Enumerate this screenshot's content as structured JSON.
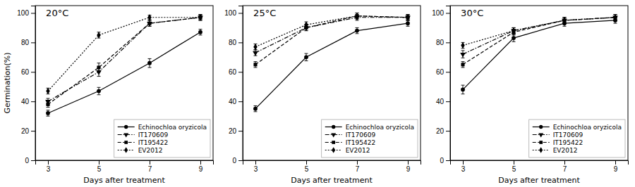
{
  "chart_data": [
    {
      "type": "line",
      "title": "20°C",
      "xlabel": "Days after treatment",
      "ylabel": "Germination(%)",
      "x": [
        3,
        5,
        7,
        9
      ],
      "xlim": [
        2.5,
        9.5
      ],
      "xticks": [
        3,
        5,
        7,
        9
      ],
      "ylim": [
        0,
        105
      ],
      "yticks": [
        0,
        20,
        40,
        60,
        80,
        100
      ],
      "legend": "lower-right",
      "series": [
        {
          "name": "Echinochloa oryzicola",
          "color": "#000000",
          "marker": "circle",
          "line_style": "solid",
          "values": [
            32,
            47,
            66,
            87
          ],
          "errors": [
            2,
            2.5,
            3,
            2
          ]
        },
        {
          "name": "IT170609",
          "color": "#000000",
          "marker": "triangle-down",
          "line_style": "dashdot",
          "values": [
            40,
            60,
            93,
            97
          ],
          "errors": [
            2,
            3,
            2,
            2
          ]
        },
        {
          "name": "IT195422",
          "color": "#000000",
          "marker": "square",
          "line_style": "dashed",
          "values": [
            38,
            63,
            93,
            97
          ],
          "errors": [
            2,
            3,
            2,
            2
          ]
        },
        {
          "name": "EV2012",
          "color": "#000000",
          "marker": "diamond",
          "line_style": "dotted",
          "values": [
            47,
            85,
            97,
            97
          ],
          "errors": [
            2,
            2,
            1.5,
            1.5
          ]
        }
      ]
    },
    {
      "type": "line",
      "title": "25°C",
      "xlabel": "Days after treatment",
      "x": [
        3,
        5,
        7,
        9
      ],
      "xlim": [
        2.5,
        9.5
      ],
      "xticks": [
        3,
        5,
        7,
        9
      ],
      "ylim": [
        0,
        105
      ],
      "yticks": [
        0,
        20,
        40,
        60,
        80,
        100
      ],
      "legend": "lower-right",
      "series": [
        {
          "name": "Echinochloa oryzicola",
          "color": "#000000",
          "marker": "circle",
          "line_style": "solid",
          "values": [
            35,
            70,
            88,
            93
          ],
          "errors": [
            2,
            2.5,
            2,
            2
          ]
        },
        {
          "name": "IT170609",
          "color": "#000000",
          "marker": "triangle-down",
          "line_style": "dashdot",
          "values": [
            73,
            90,
            97,
            97
          ],
          "errors": [
            2,
            2,
            2,
            2
          ]
        },
        {
          "name": "IT195422",
          "color": "#000000",
          "marker": "square",
          "line_style": "dashed",
          "values": [
            65,
            90,
            98,
            97
          ],
          "errors": [
            2,
            2,
            2,
            2
          ]
        },
        {
          "name": "EV2012",
          "color": "#000000",
          "marker": "diamond",
          "line_style": "dotted",
          "values": [
            77,
            92,
            98,
            97
          ],
          "errors": [
            2,
            2,
            2,
            1.5
          ]
        }
      ]
    },
    {
      "type": "line",
      "title": "30°C",
      "xlabel": "Days after treatment",
      "x": [
        3,
        5,
        7,
        9
      ],
      "xlim": [
        2.5,
        9.5
      ],
      "xticks": [
        3,
        5,
        7,
        9
      ],
      "ylim": [
        0,
        105
      ],
      "yticks": [
        0,
        20,
        40,
        60,
        80,
        100
      ],
      "legend": "lower-right",
      "series": [
        {
          "name": "Echinochloa oryzicola",
          "color": "#000000",
          "marker": "circle",
          "line_style": "solid",
          "values": [
            48,
            83,
            93,
            95
          ],
          "errors": [
            3,
            2.5,
            2,
            2
          ]
        },
        {
          "name": "IT170609",
          "color": "#000000",
          "marker": "triangle-down",
          "line_style": "dashdot",
          "values": [
            72,
            88,
            95,
            97
          ],
          "errors": [
            2.5,
            2,
            2,
            2
          ]
        },
        {
          "name": "IT195422",
          "color": "#000000",
          "marker": "square",
          "line_style": "dashed",
          "values": [
            65,
            87,
            95,
            97
          ],
          "errors": [
            2,
            2,
            2,
            2
          ]
        },
        {
          "name": "EV2012",
          "color": "#000000",
          "marker": "diamond",
          "line_style": "dotted",
          "values": [
            78,
            88,
            95,
            97
          ],
          "errors": [
            2,
            2,
            2,
            2
          ]
        }
      ]
    }
  ]
}
